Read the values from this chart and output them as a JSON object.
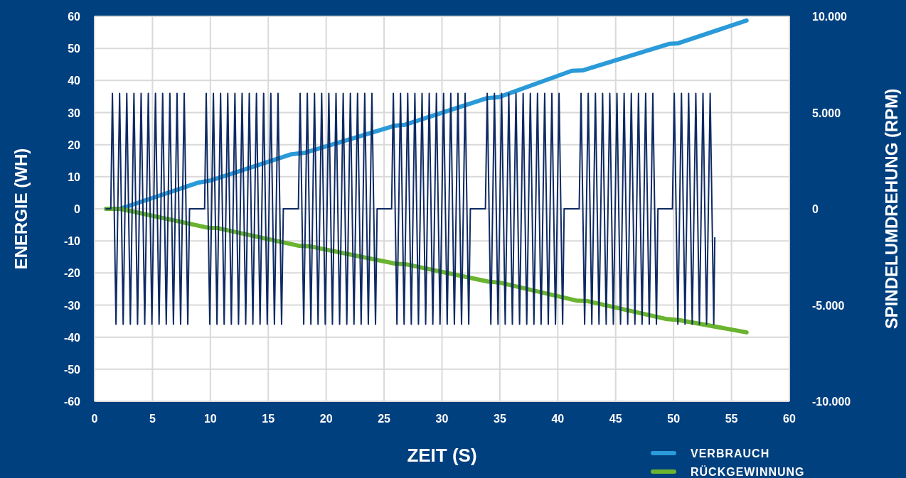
{
  "chart_data": {
    "type": "line",
    "xlabel": "ZEIT (S)",
    "ylabel": "ENERGIE (WH)",
    "y2label": "SPINDELUMDREHUNG (RPM)",
    "xlim": [
      0,
      60
    ],
    "xticks": [
      0,
      5,
      10,
      15,
      20,
      25,
      30,
      35,
      40,
      45,
      50,
      55,
      60
    ],
    "ylim": [
      -60,
      60
    ],
    "yticks": [
      -60,
      -50,
      -40,
      -30,
      -20,
      -10,
      0,
      10,
      20,
      30,
      40,
      50,
      60
    ],
    "y2lim": [
      -10000,
      10000
    ],
    "y2ticks": [
      {
        "value": -10000,
        "label": "-10.000"
      },
      {
        "value": -5000,
        "label": "-5.000"
      },
      0,
      {
        "value": 5000,
        "label": "5.000"
      },
      {
        "value": 10000,
        "label": "10.000"
      }
    ],
    "grid": true,
    "legend": "bottom right",
    "marker": "none",
    "line_style": "solid",
    "series": [
      {
        "color": "#0f2a63",
        "axis": "y2",
        "x": [
          1.0,
          1.4,
          1.54,
          1.85,
          2.16,
          2.47,
          2.78,
          3.09,
          3.4,
          3.71,
          4.02,
          4.33,
          4.64,
          4.95,
          5.26,
          5.57,
          5.88,
          6.19,
          6.5,
          6.81,
          7.12,
          7.43,
          7.74,
          8.05,
          8.2,
          9.5,
          9.64,
          9.95,
          10.26,
          10.57,
          10.88,
          11.19,
          11.5,
          11.81,
          12.12,
          12.43,
          12.74,
          13.05,
          13.36,
          13.67,
          13.98,
          14.29,
          14.6,
          14.91,
          15.22,
          15.53,
          15.84,
          16.15,
          16.3,
          17.6,
          17.75,
          18.06,
          18.37,
          18.68,
          18.99,
          19.3,
          19.61,
          19.92,
          20.23,
          20.54,
          20.85,
          21.16,
          21.47,
          21.78,
          22.09,
          22.4,
          22.71,
          23.02,
          23.33,
          23.64,
          23.95,
          24.26,
          24.4,
          25.65,
          25.8,
          26.11,
          26.42,
          26.73,
          27.04,
          27.35,
          27.66,
          27.97,
          28.28,
          28.59,
          28.9,
          29.21,
          29.52,
          29.83,
          30.14,
          30.45,
          30.76,
          31.07,
          31.38,
          31.69,
          32.0,
          32.31,
          32.45,
          33.75,
          33.91,
          34.22,
          34.53,
          34.84,
          35.15,
          35.46,
          35.77,
          36.08,
          36.39,
          36.7,
          37.01,
          37.32,
          37.63,
          37.94,
          38.25,
          38.56,
          38.87,
          39.18,
          39.49,
          39.8,
          40.11,
          40.42,
          40.55,
          41.85,
          42.01,
          42.32,
          42.63,
          42.94,
          43.25,
          43.56,
          43.87,
          44.18,
          44.49,
          44.8,
          45.11,
          45.42,
          45.73,
          46.04,
          46.35,
          46.66,
          46.97,
          47.28,
          47.59,
          47.9,
          48.21,
          48.52,
          48.65,
          49.9,
          50.06,
          50.37,
          50.68,
          50.99,
          51.3,
          51.61,
          51.92,
          52.23,
          52.54,
          52.85,
          53.16,
          53.47,
          53.56
        ],
        "values": [
          0,
          0,
          6000,
          -6000,
          6000,
          -6000,
          6000,
          -6000,
          6000,
          -6000,
          6000,
          -6000,
          6000,
          -6000,
          6000,
          -6000,
          6000,
          -6000,
          6000,
          -6000,
          6000,
          -6000,
          6000,
          -6000,
          0,
          0,
          6000,
          -6000,
          6000,
          -6000,
          6000,
          -6000,
          6000,
          -6000,
          6000,
          -6000,
          6000,
          -6000,
          6000,
          -6000,
          6000,
          -6000,
          6000,
          -6000,
          6000,
          -6000,
          6000,
          -6000,
          0,
          0,
          6000,
          -6000,
          6000,
          -6000,
          6000,
          -6000,
          6000,
          -6000,
          6000,
          -6000,
          6000,
          -6000,
          6000,
          -6000,
          6000,
          -6000,
          6000,
          -6000,
          6000,
          -6000,
          6000,
          -6000,
          0,
          0,
          6000,
          -6000,
          6000,
          -6000,
          6000,
          -6000,
          6000,
          -6000,
          6000,
          -6000,
          6000,
          -6000,
          6000,
          -6000,
          6000,
          -6000,
          6000,
          -6000,
          6000,
          -6000,
          6000,
          -6000,
          0,
          0,
          6000,
          -6000,
          6000,
          -6000,
          6000,
          -6000,
          6000,
          -6000,
          6000,
          -6000,
          6000,
          -6000,
          6000,
          -6000,
          6000,
          -6000,
          6000,
          -6000,
          6000,
          -6000,
          6000,
          -6000,
          0,
          0,
          6000,
          -6000,
          6000,
          -6000,
          6000,
          -6000,
          6000,
          -6000,
          6000,
          -6000,
          6000,
          -6000,
          6000,
          -6000,
          6000,
          -6000,
          6000,
          -6000,
          6000,
          -6000,
          6000,
          -6000,
          0,
          0,
          6000,
          -6000,
          6000,
          -6000,
          6000,
          -6000,
          6000,
          -6000,
          6000,
          -6000,
          6000,
          -6000,
          -1500
        ]
      },
      {
        "name": "VERBRAUCH",
        "color": "#2a9ad8",
        "x": [
          1.0,
          2.2,
          9.0,
          10.0,
          17.0,
          18.2,
          25.9,
          26.8,
          33.9,
          34.9,
          41.2,
          42.2,
          49.6,
          50.4,
          56.3
        ],
        "values": [
          0,
          0,
          8.2,
          8.8,
          17.0,
          17.5,
          25.9,
          26.2,
          34.5,
          34.8,
          43.0,
          43.2,
          51.4,
          51.6,
          58.7
        ]
      },
      {
        "name": "RÜCKGEWINNUNG",
        "color": "#6ab42f",
        "x": [
          1.0,
          2.2,
          9.8,
          10.6,
          17.6,
          18.6,
          26.0,
          26.9,
          34.0,
          35.0,
          41.6,
          42.6,
          49.3,
          50.5,
          56.3
        ],
        "values": [
          0,
          0,
          -5.9,
          -6.0,
          -11.5,
          -11.7,
          -17.1,
          -17.3,
          -22.7,
          -23.0,
          -28.6,
          -28.8,
          -34.3,
          -34.7,
          -38.5
        ]
      }
    ]
  }
}
